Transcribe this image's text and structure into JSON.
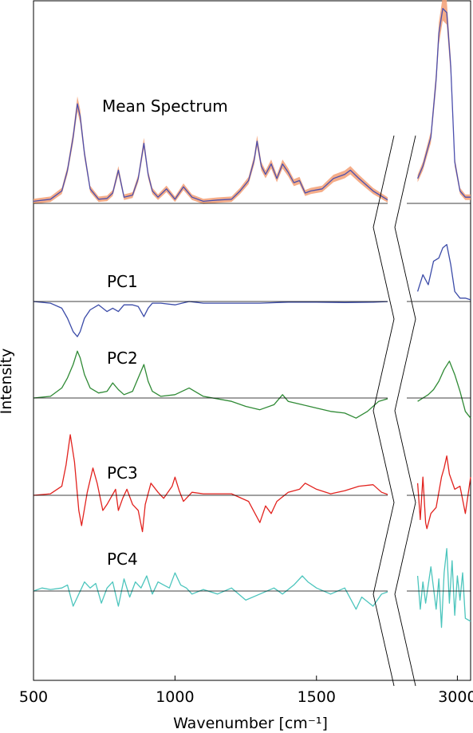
{
  "chart_data": {
    "type": "line",
    "title": "",
    "xlabel": "Wavenumber [cm⁻¹]",
    "ylabel": "Intensity",
    "x_range_left": [
      500,
      1760
    ],
    "x_range_right": [
      2800,
      3050
    ],
    "x_ticks": [
      {
        "value": 500,
        "label": "500"
      },
      {
        "value": 1000,
        "label": "1000"
      },
      {
        "value": 1500,
        "label": "1500"
      },
      {
        "value": 3000,
        "label": "3000"
      }
    ],
    "axis_break": true,
    "colors": {
      "mean": "#4b4fae",
      "band": "#f4a47c",
      "pc1": "#3b4ba8",
      "pc2": "#2f8a35",
      "pc3": "#e2231f",
      "pc4": "#4cc5bd"
    },
    "series": [
      {
        "name": "Mean Spectrum",
        "key": "mean",
        "baseline": 0,
        "band_halfwidth": 0.05,
        "x": [
          500,
          560,
          600,
          620,
          640,
          655,
          665,
          680,
          700,
          730,
          760,
          780,
          800,
          820,
          850,
          870,
          890,
          905,
          920,
          940,
          970,
          1000,
          1030,
          1060,
          1100,
          1150,
          1200,
          1230,
          1260,
          1280,
          1290,
          1305,
          1320,
          1340,
          1360,
          1380,
          1400,
          1420,
          1440,
          1460,
          1480,
          1520,
          1560,
          1600,
          1620,
          1650,
          1700,
          1760,
          2850,
          2870,
          2900,
          2920,
          2930,
          2945,
          2960,
          2975,
          2990,
          3010,
          3030,
          3050
        ],
        "y": [
          0.05,
          0.1,
          0.3,
          0.8,
          1.6,
          2.4,
          2.1,
          1.2,
          0.35,
          0.1,
          0.12,
          0.25,
          0.8,
          0.15,
          0.2,
          0.6,
          1.45,
          0.7,
          0.3,
          0.15,
          0.35,
          0.1,
          0.4,
          0.15,
          0.05,
          0.08,
          0.1,
          0.3,
          0.55,
          1.05,
          1.5,
          0.9,
          0.7,
          0.95,
          0.6,
          0.95,
          0.75,
          0.5,
          0.55,
          0.25,
          0.3,
          0.35,
          0.6,
          0.7,
          0.8,
          0.6,
          0.3,
          0.05,
          0.6,
          0.9,
          1.6,
          3.0,
          4.1,
          4.7,
          4.6,
          3.3,
          1.0,
          0.3,
          0.15,
          0.15
        ]
      },
      {
        "name": "PC1",
        "key": "pc1",
        "baseline": 0,
        "x": [
          500,
          560,
          600,
          620,
          640,
          655,
          665,
          680,
          700,
          730,
          760,
          780,
          800,
          820,
          850,
          870,
          890,
          905,
          920,
          950,
          1000,
          1050,
          1100,
          1200,
          1300,
          1400,
          1500,
          1600,
          1700,
          1760,
          2850,
          2870,
          2890,
          2910,
          2930,
          2945,
          2960,
          2975,
          2990,
          3010,
          3030,
          3050
        ],
        "y": [
          0,
          -0.05,
          -0.2,
          -0.5,
          -0.9,
          -1.05,
          -0.9,
          -0.5,
          -0.25,
          -0.1,
          -0.3,
          -0.2,
          -0.3,
          -0.1,
          -0.1,
          -0.15,
          -0.45,
          -0.2,
          -0.05,
          -0.05,
          -0.1,
          0,
          -0.05,
          -0.05,
          -0.05,
          -0.02,
          -0.02,
          -0.03,
          -0.02,
          0,
          0.3,
          0.8,
          0.5,
          1.2,
          1.3,
          1.6,
          1.7,
          1.1,
          0.3,
          0.1,
          0.1,
          0.05
        ]
      },
      {
        "name": "PC2",
        "key": "pc2",
        "baseline": 0,
        "x": [
          500,
          560,
          600,
          620,
          640,
          655,
          665,
          680,
          700,
          730,
          760,
          780,
          800,
          820,
          850,
          870,
          890,
          905,
          920,
          950,
          1000,
          1050,
          1100,
          1200,
          1250,
          1300,
          1350,
          1380,
          1400,
          1450,
          1500,
          1550,
          1600,
          1640,
          1680,
          1720,
          1760,
          2850,
          2870,
          2890,
          2910,
          2930,
          2950,
          2970,
          2990,
          3010,
          3030,
          3050
        ],
        "y": [
          0,
          0.05,
          0.3,
          0.6,
          1.0,
          1.4,
          1.2,
          0.7,
          0.3,
          0.15,
          0.2,
          0.45,
          0.25,
          0.1,
          0.2,
          0.6,
          1.0,
          0.5,
          0.2,
          0.05,
          0.1,
          0.3,
          0.05,
          -0.1,
          -0.25,
          -0.35,
          -0.2,
          0.1,
          -0.1,
          -0.2,
          -0.3,
          -0.4,
          -0.45,
          -0.6,
          -0.4,
          -0.1,
          0,
          -0.1,
          0,
          0.1,
          0.25,
          0.5,
          0.85,
          1.1,
          0.7,
          0.2,
          -0.4,
          -0.6
        ]
      },
      {
        "name": "PC3",
        "key": "pc3",
        "baseline": 0,
        "x": [
          500,
          560,
          600,
          615,
          630,
          645,
          660,
          670,
          690,
          710,
          725,
          745,
          760,
          790,
          800,
          815,
          830,
          850,
          870,
          885,
          895,
          915,
          940,
          960,
          990,
          1000,
          1015,
          1030,
          1060,
          1100,
          1200,
          1260,
          1300,
          1320,
          1340,
          1360,
          1400,
          1440,
          1460,
          1500,
          1550,
          1600,
          1650,
          1700,
          1730,
          1760,
          2850,
          2860,
          2870,
          2880,
          2885,
          2900,
          2920,
          2940,
          2950,
          2960,
          2970,
          2990,
          3010,
          3030,
          3050
        ],
        "y": [
          0,
          0.05,
          0.3,
          1.0,
          2.0,
          1.1,
          -0.5,
          -1.0,
          0.1,
          0.9,
          0.4,
          -0.5,
          -0.3,
          0.2,
          -0.5,
          -0.1,
          0.2,
          -0.3,
          -0.5,
          -1.2,
          -0.3,
          0.4,
          0.1,
          -0.1,
          0.3,
          0.6,
          0.15,
          -0.2,
          0.1,
          0.05,
          0.05,
          -0.2,
          -0.9,
          -0.35,
          -0.6,
          -0.2,
          0.1,
          0.2,
          0.4,
          0.2,
          0.05,
          0.15,
          0.3,
          0.35,
          0.1,
          0,
          0.4,
          -0.8,
          0.6,
          -0.9,
          -1.1,
          -0.6,
          -0.4,
          0.6,
          0.9,
          1.3,
          0.7,
          0.2,
          0.3,
          -0.6,
          0.6
        ]
      },
      {
        "name": "PC4",
        "key": "pc4",
        "baseline": 0,
        "x": [
          500,
          530,
          560,
          600,
          620,
          640,
          660,
          680,
          700,
          720,
          740,
          760,
          780,
          800,
          820,
          840,
          860,
          880,
          900,
          920,
          940,
          960,
          980,
          1000,
          1020,
          1040,
          1060,
          1100,
          1150,
          1200,
          1250,
          1300,
          1350,
          1380,
          1420,
          1450,
          1470,
          1500,
          1550,
          1600,
          1640,
          1660,
          1700,
          1730,
          1760,
          2850,
          2860,
          2870,
          2880,
          2900,
          2920,
          2930,
          2940,
          2950,
          2960,
          2970,
          2980,
          2990,
          3000,
          3010,
          3020,
          3030,
          3050
        ],
        "y": [
          0,
          0.1,
          0.05,
          0.1,
          0.2,
          -0.5,
          -0.1,
          0.3,
          0.1,
          0.25,
          -0.4,
          0.1,
          0.3,
          -0.5,
          0.4,
          -0.2,
          0.3,
          0.1,
          0.5,
          -0.1,
          0.3,
          0.2,
          0.1,
          0.6,
          0.2,
          0.1,
          -0.1,
          0.05,
          -0.1,
          0.1,
          -0.3,
          -0.1,
          0.1,
          -0.1,
          0.2,
          0.5,
          0.3,
          0.1,
          -0.1,
          0.1,
          -0.6,
          -0.2,
          -0.5,
          -0.1,
          0,
          0.5,
          -0.6,
          0.3,
          -0.4,
          0.8,
          -0.6,
          0.4,
          -1.2,
          0.6,
          1.4,
          -0.4,
          1.0,
          -0.8,
          0.5,
          -0.3,
          0.6,
          -0.9,
          -1.0
        ]
      }
    ]
  }
}
